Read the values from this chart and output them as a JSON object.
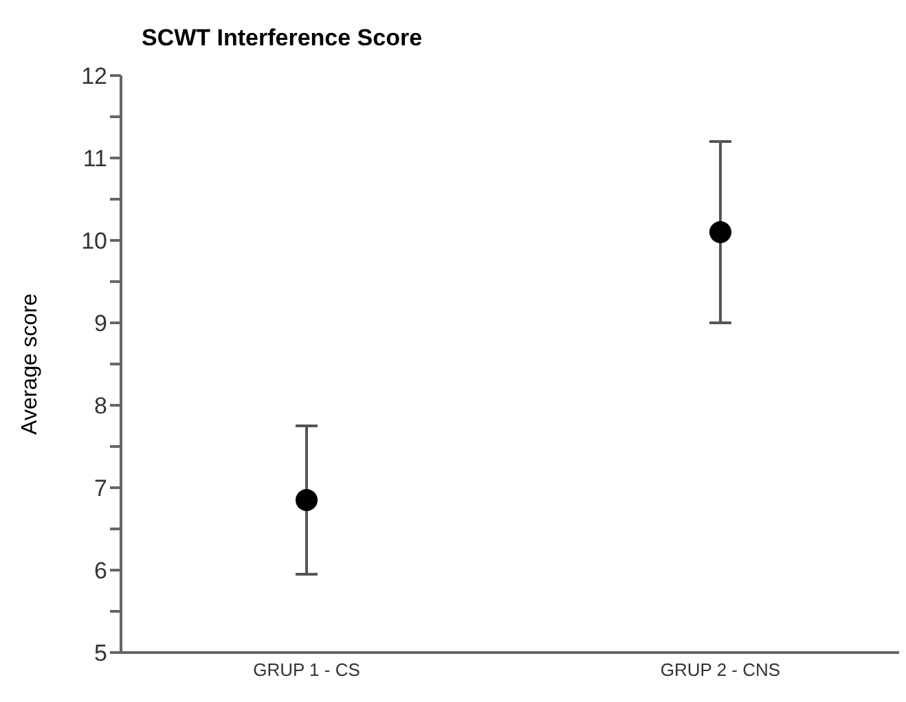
{
  "chart_data": {
    "type": "scatter",
    "title": "SCWT Interference Score",
    "ylabel": "Average score",
    "categories": [
      "GRUP 1 - CS",
      "GRUP 2 - CNS"
    ],
    "series": [
      {
        "color": "#000000",
        "values": [
          6.85,
          10.1
        ],
        "errors": [
          0.9,
          1.1
        ]
      }
    ],
    "ylim": [
      5,
      12
    ],
    "yticks": [
      5,
      {
        "value": 5.5,
        "label": null
      },
      6,
      {
        "value": 6.5,
        "label": null
      },
      7,
      {
        "value": 7.5,
        "label": null
      },
      8,
      {
        "value": 8.5,
        "label": null
      },
      9,
      {
        "value": 9.5,
        "label": null
      },
      10,
      {
        "value": 10.5,
        "label": null
      },
      11,
      {
        "value": 11.5,
        "label": null
      },
      12
    ],
    "marker": "circle",
    "grid": false
  }
}
